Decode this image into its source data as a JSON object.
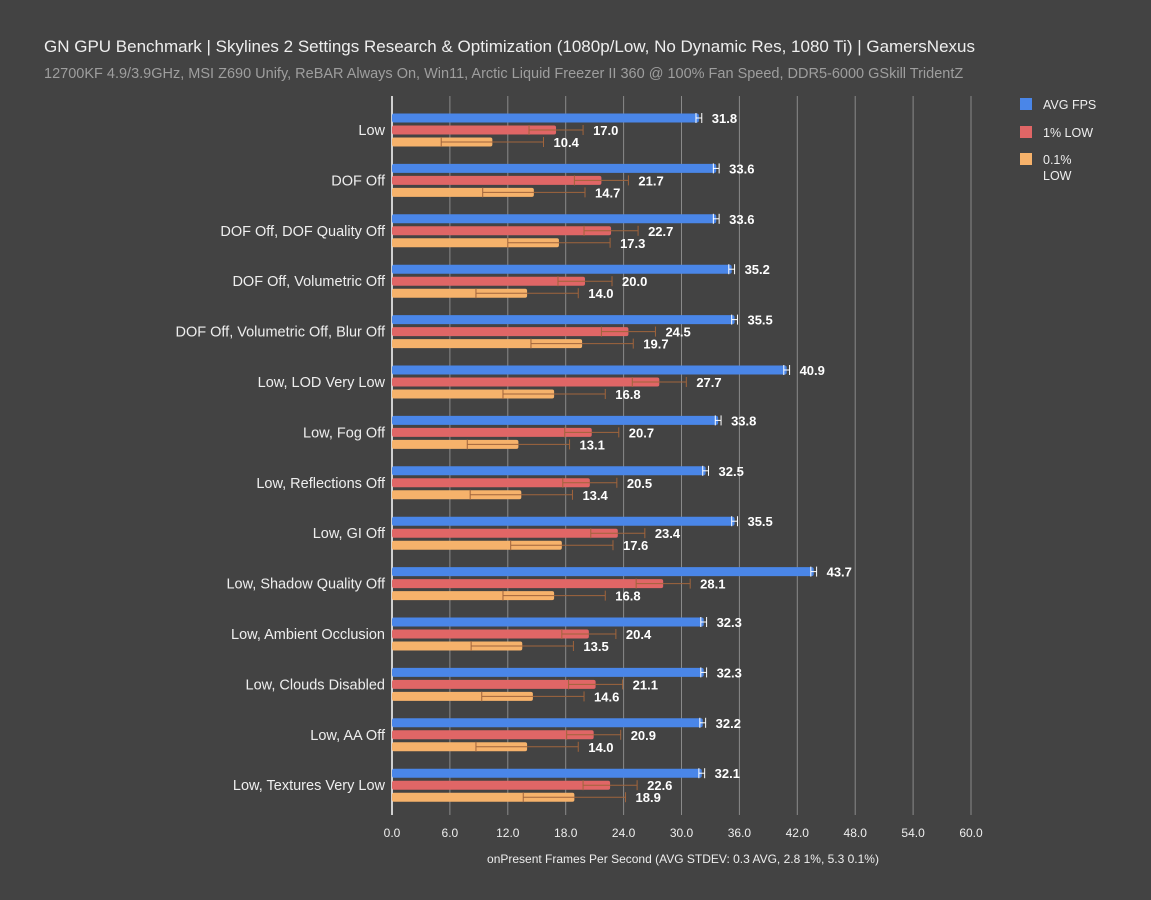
{
  "chart_data": {
    "type": "bar",
    "orientation": "horizontal",
    "title": "GN GPU Benchmark | Skylines 2 Settings Research & Optimization (1080p/Low, No Dynamic Res, 1080 Ti) | GamersNexus",
    "subtitle": "12700KF 4.9/3.9GHz, MSI Z690 Unify, ReBAR Always On, Win11, Arctic Liquid Freezer II 360 @ 100% Fan Speed, DDR5-6000 GSkill TridentZ",
    "xlabel": "onPresent Frames Per Second (AVG STDEV: 0.3 AVG, 2.8 1%, 5.3 0.1%)",
    "ylabel": "",
    "xlim": [
      0,
      60
    ],
    "xticks": [
      "0.0",
      "6.0",
      "12.0",
      "18.0",
      "24.0",
      "30.0",
      "36.0",
      "42.0",
      "48.0",
      "54.0",
      "60.0"
    ],
    "grid": true,
    "legend_position": "top-right",
    "categories": [
      "Low",
      "DOF Off",
      "DOF Off, DOF Quality Off",
      "DOF Off, Volumetric Off",
      "DOF Off, Volumetric Off, Blur Off",
      "Low, LOD Very Low",
      "Low, Fog Off",
      "Low, Reflections Off",
      "Low, GI Off",
      "Low, Shadow Quality Off",
      "Low, Ambient Occlusion",
      "Low, Clouds Disabled",
      "Low, AA Off",
      "Low, Textures Very Low"
    ],
    "series": [
      {
        "name": "AVG FPS",
        "color": "#4a86e8",
        "stdev": 0.3,
        "values": [
          31.8,
          33.6,
          33.6,
          35.2,
          35.5,
          40.9,
          33.8,
          32.5,
          35.5,
          43.7,
          32.3,
          32.3,
          32.2,
          32.1
        ]
      },
      {
        "name": "1% LOW",
        "color": "#e06666",
        "stdev": 2.8,
        "values": [
          17.0,
          21.7,
          22.7,
          20.0,
          24.5,
          27.7,
          20.7,
          20.5,
          23.4,
          28.1,
          20.4,
          21.1,
          20.9,
          22.6
        ]
      },
      {
        "name": "0.1% LOW",
        "color": "#f6b26b",
        "stdev": 5.3,
        "values": [
          10.4,
          14.7,
          17.3,
          14.0,
          19.7,
          16.8,
          13.1,
          13.4,
          17.6,
          16.8,
          13.5,
          14.6,
          14.0,
          18.9
        ]
      }
    ]
  }
}
